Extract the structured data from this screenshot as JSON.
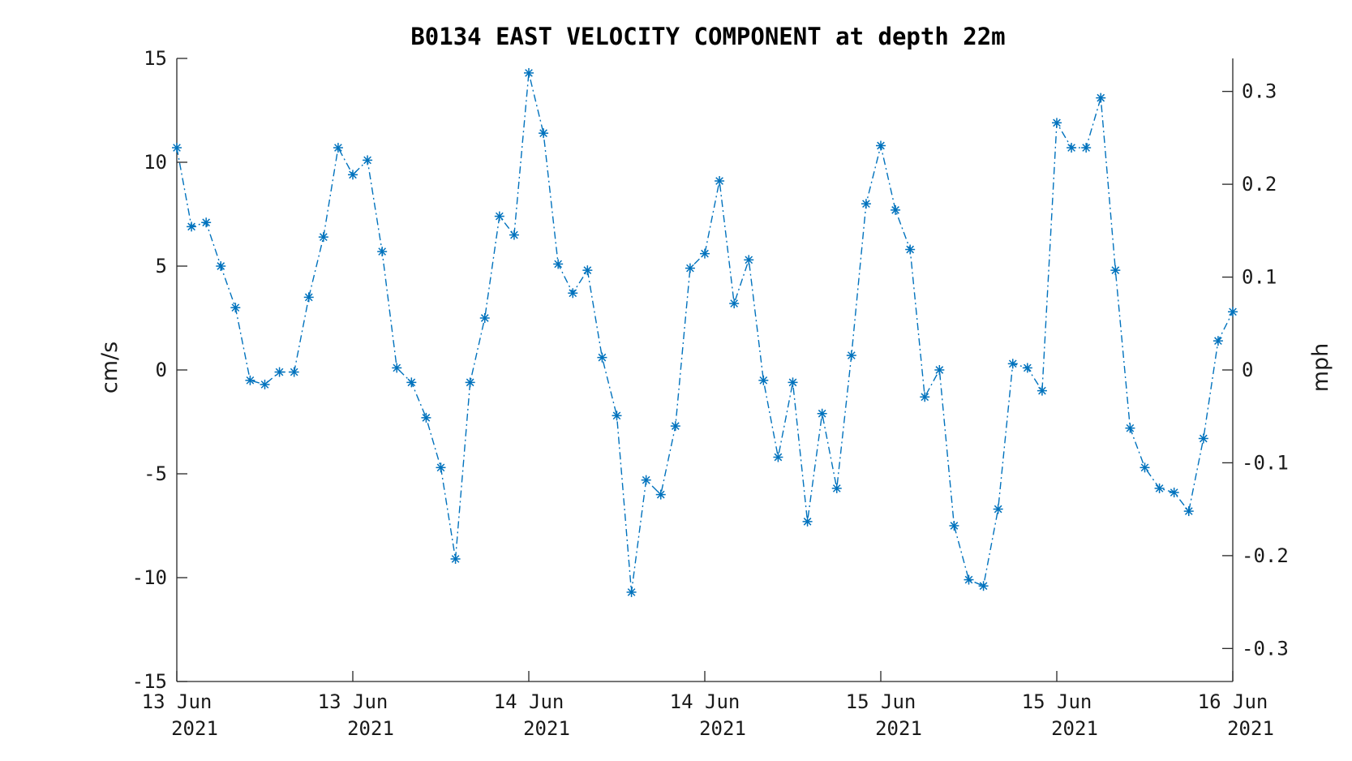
{
  "chart_data": {
    "type": "line",
    "title": "B0134 EAST VELOCITY COMPONENT at depth 22m",
    "ylabel": "cm/s",
    "ylabel_right": "mph",
    "ylim": [
      -15,
      15
    ],
    "yticks": [
      15,
      10,
      5,
      0,
      -5,
      -10,
      -15
    ],
    "yticks_labels": [
      "15",
      "10",
      "5",
      "0",
      "-5",
      "-10",
      "-15"
    ],
    "y2lim": [
      -0.33554,
      0.33554
    ],
    "y2ticks": [
      0.3,
      0.2,
      0.1,
      0,
      -0.1,
      -0.2,
      -0.3
    ],
    "y2ticks_labels": [
      "0.3",
      "0.2",
      "0.1",
      "0",
      "-0.1",
      "-0.2",
      "-0.3"
    ],
    "xlim": [
      "2021-06-13T00:00",
      "2021-06-16T00:00"
    ],
    "xticks": [
      "2021-06-13T00:00",
      "2021-06-13T12:00",
      "2021-06-14T00:00",
      "2021-06-14T12:00",
      "2021-06-15T00:00",
      "2021-06-15T12:00",
      "2021-06-16T00:00"
    ],
    "xticks_labels": [
      [
        "13 Jun",
        "2021"
      ],
      [
        "13 Jun",
        "2021"
      ],
      [
        "14 Jun",
        "2021"
      ],
      [
        "14 Jun",
        "2021"
      ],
      [
        "15 Jun",
        "2021"
      ],
      [
        "15 Jun",
        "2021"
      ],
      [
        "16 Jun",
        "2021"
      ]
    ],
    "grid": false,
    "series": [
      {
        "color": "#0072bd",
        "line_style": "dash-dot",
        "marker": "asterisk",
        "x": [
          "2021-06-13T00:00",
          "2021-06-13T01:00",
          "2021-06-13T02:00",
          "2021-06-13T03:00",
          "2021-06-13T04:00",
          "2021-06-13T05:00",
          "2021-06-13T06:00",
          "2021-06-13T07:00",
          "2021-06-13T08:00",
          "2021-06-13T09:00",
          "2021-06-13T10:00",
          "2021-06-13T11:00",
          "2021-06-13T12:00",
          "2021-06-13T13:00",
          "2021-06-13T14:00",
          "2021-06-13T15:00",
          "2021-06-13T16:00",
          "2021-06-13T17:00",
          "2021-06-13T18:00",
          "2021-06-13T19:00",
          "2021-06-13T20:00",
          "2021-06-13T21:00",
          "2021-06-13T22:00",
          "2021-06-13T23:00",
          "2021-06-14T00:00",
          "2021-06-14T01:00",
          "2021-06-14T02:00",
          "2021-06-14T03:00",
          "2021-06-14T04:00",
          "2021-06-14T05:00",
          "2021-06-14T06:00",
          "2021-06-14T07:00",
          "2021-06-14T08:00",
          "2021-06-14T09:00",
          "2021-06-14T10:00",
          "2021-06-14T11:00",
          "2021-06-14T12:00",
          "2021-06-14T13:00",
          "2021-06-14T14:00",
          "2021-06-14T15:00",
          "2021-06-14T16:00",
          "2021-06-14T17:00",
          "2021-06-14T18:00",
          "2021-06-14T19:00",
          "2021-06-14T20:00",
          "2021-06-14T21:00",
          "2021-06-14T22:00",
          "2021-06-14T23:00",
          "2021-06-15T00:00",
          "2021-06-15T01:00",
          "2021-06-15T02:00",
          "2021-06-15T03:00",
          "2021-06-15T04:00",
          "2021-06-15T05:00",
          "2021-06-15T06:00",
          "2021-06-15T07:00",
          "2021-06-15T08:00",
          "2021-06-15T09:00",
          "2021-06-15T10:00",
          "2021-06-15T11:00",
          "2021-06-15T12:00",
          "2021-06-15T13:00",
          "2021-06-15T14:00",
          "2021-06-15T15:00",
          "2021-06-15T16:00",
          "2021-06-15T17:00",
          "2021-06-15T18:00",
          "2021-06-15T19:00",
          "2021-06-15T20:00",
          "2021-06-15T21:00",
          "2021-06-15T22:00",
          "2021-06-15T23:00",
          "2021-06-16T00:00"
        ],
        "values": [
          10.7,
          6.9,
          7.1,
          5.0,
          3.0,
          -0.5,
          -0.7,
          -0.1,
          -0.1,
          3.5,
          6.4,
          10.7,
          9.4,
          10.1,
          5.7,
          0.1,
          -0.6,
          -2.3,
          -4.7,
          -9.1,
          -0.6,
          2.5,
          7.4,
          6.5,
          14.3,
          11.4,
          5.1,
          3.7,
          4.8,
          0.6,
          -2.2,
          -10.7,
          -5.3,
          -6.0,
          -2.7,
          4.9,
          5.6,
          9.1,
          3.2,
          5.3,
          -0.5,
          -4.2,
          -0.6,
          -7.3,
          -2.1,
          -5.7,
          0.7,
          8.0,
          10.8,
          7.7,
          5.8,
          -1.3,
          0.0,
          -7.5,
          -10.1,
          -10.4,
          -6.7,
          0.3,
          0.1,
          -1.0,
          11.9,
          10.7,
          10.7,
          13.1,
          4.8,
          -2.8,
          -4.7,
          -5.7,
          -5.9,
          -6.8,
          -3.3,
          1.4,
          2.8
        ]
      }
    ]
  }
}
